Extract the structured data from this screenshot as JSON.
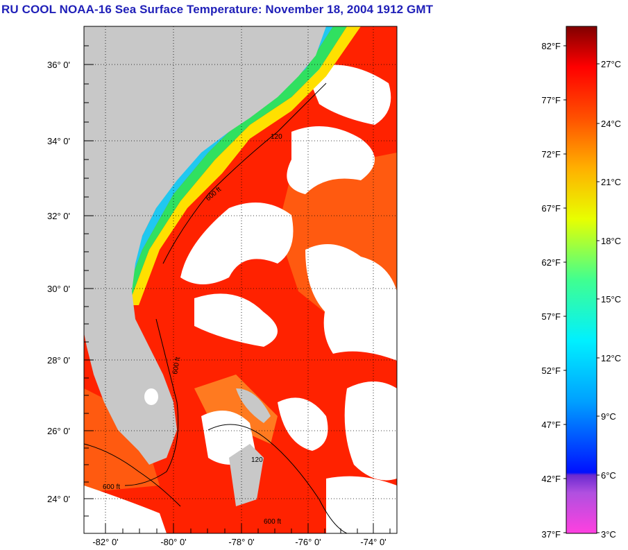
{
  "title": "RU COOL  NOAA-16  Sea Surface Temperature:  November 18, 2004 1912 GMT",
  "map": {
    "lat_labels": [
      "36° 0'",
      "34° 0'",
      "32° 0'",
      "30° 0'",
      "28° 0'",
      "26° 0'",
      "24° 0'"
    ],
    "lon_labels": [
      "-82° 0'",
      "-80° 0'",
      "-78° 0'",
      "-76° 0'",
      "-74° 0'"
    ],
    "contour_labels": [
      "600 ft",
      "600 ft",
      "600 ft",
      "120",
      "120",
      "600 ft"
    ]
  },
  "colorbar": {
    "f_labels": [
      "82°F",
      "77°F",
      "72°F",
      "67°F",
      "62°F",
      "57°F",
      "52°F",
      "47°F",
      "42°F",
      "37°F"
    ],
    "c_labels": [
      "27°C",
      "24°C",
      "21°C",
      "18°C",
      "15°C",
      "12°C",
      "9°C",
      "6°C",
      "3°C"
    ]
  },
  "colors": {
    "title": "#1f1fb8",
    "land": "#c8c8c8",
    "warm": "#ff1a00",
    "orange": "#ff6a10",
    "cloud": "#ffffff"
  }
}
